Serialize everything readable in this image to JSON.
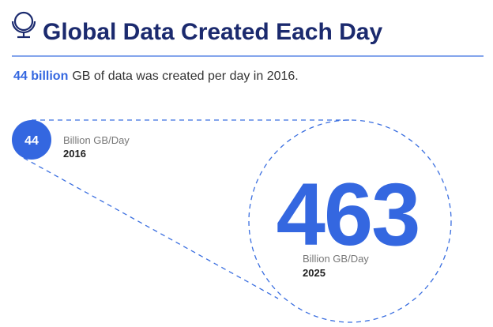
{
  "header": {
    "title": "Global Data Created Each Day"
  },
  "subtitle": {
    "highlight": "44 billion",
    "text": "GB of data was created per day in 2016."
  },
  "items": [
    {
      "value": 44,
      "unit": "Billion GB/Day",
      "year": "2016"
    },
    {
      "value": 463,
      "unit": "Billion GB/Day",
      "year": "2025"
    }
  ]
}
